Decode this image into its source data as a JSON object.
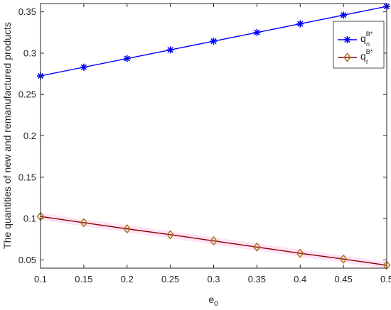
{
  "chart_data": {
    "type": "line",
    "title": "",
    "xlabel": "e",
    "xlabel_subscript": "0",
    "ylabel": "The quantities of new and remanufactured products",
    "xlim": [
      0.1,
      0.5
    ],
    "ylim": [
      0.04,
      0.36
    ],
    "xticks": [
      "0.1",
      "0.15",
      "0.2",
      "0.25",
      "0.3",
      "0.35",
      "0.4",
      "0.45",
      "0.5"
    ],
    "yticks": [
      "0.05",
      "0.1",
      "0.15",
      "0.2",
      "0.25",
      "0.3",
      "0.35"
    ],
    "grid": false,
    "legend_position": "top-right",
    "x": [
      0.1,
      0.15,
      0.2,
      0.25,
      0.3,
      0.35,
      0.4,
      0.45,
      0.5
    ],
    "series": [
      {
        "name": "q",
        "sub": "n",
        "sup": "B*",
        "color": "#0000ff",
        "marker": "asterisk",
        "values": [
          0.2725,
          0.283,
          0.2935,
          0.304,
          0.3145,
          0.325,
          0.3355,
          0.346,
          0.3565
        ]
      },
      {
        "name": "q",
        "sub": "r",
        "sup": "B*",
        "color": "#ff0000",
        "line_color": "#8b0000",
        "marker": "diamond",
        "marker_color": "#b07818",
        "values": [
          0.1025,
          0.095,
          0.0875,
          0.0805,
          0.073,
          0.0655,
          0.058,
          0.051,
          0.0435
        ]
      }
    ]
  }
}
